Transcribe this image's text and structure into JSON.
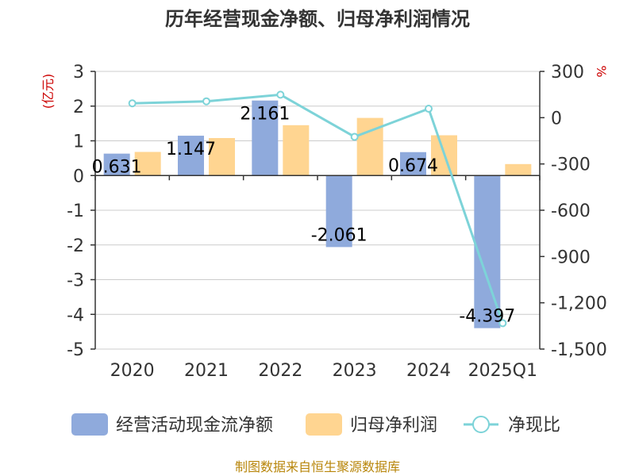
{
  "chart_data": {
    "type": "bar+line",
    "title": "历年经营现金净额、归母净利润情况",
    "categories": [
      "2020",
      "2021",
      "2022",
      "2023",
      "2024",
      "2025Q1"
    ],
    "series": [
      {
        "name": "经营活动现金流净额",
        "kind": "bar",
        "axis": "left",
        "color": "#8faadc",
        "values": [
          0.631,
          1.147,
          2.161,
          -2.061,
          0.674,
          -4.397
        ],
        "labels": [
          "0.631",
          "1.147",
          "2.161",
          "-2.061",
          "0.674",
          "-4.397"
        ]
      },
      {
        "name": "归母净利润",
        "kind": "bar",
        "axis": "left",
        "color": "#ffd591",
        "values": [
          0.68,
          1.08,
          1.45,
          1.66,
          1.16,
          0.33
        ]
      },
      {
        "name": "净现比",
        "kind": "line",
        "axis": "right",
        "color": "#7dd3d8",
        "values": [
          93,
          106,
          149,
          -124,
          58,
          -1332
        ]
      }
    ],
    "left_axis": {
      "unit": "(亿元)",
      "ylim": [
        -5,
        3
      ],
      "ticks": [
        3,
        2,
        1,
        0,
        -1,
        -2,
        -3,
        -4,
        -5
      ],
      "tick_labels": [
        "3",
        "2",
        "1",
        "0",
        "-1",
        "-2",
        "-3",
        "-4",
        "-5"
      ]
    },
    "right_axis": {
      "unit": "%",
      "ylim": [
        -1500,
        300
      ],
      "ticks": [
        300,
        0,
        -300,
        -600,
        -900,
        -1200,
        -1500
      ],
      "tick_labels": [
        "300",
        "0",
        "-300",
        "-600",
        "-900",
        "-1,200",
        "-1,500"
      ]
    },
    "grid": true,
    "legend_position": "bottom"
  },
  "source": "制图数据来自恒生聚源数据库"
}
